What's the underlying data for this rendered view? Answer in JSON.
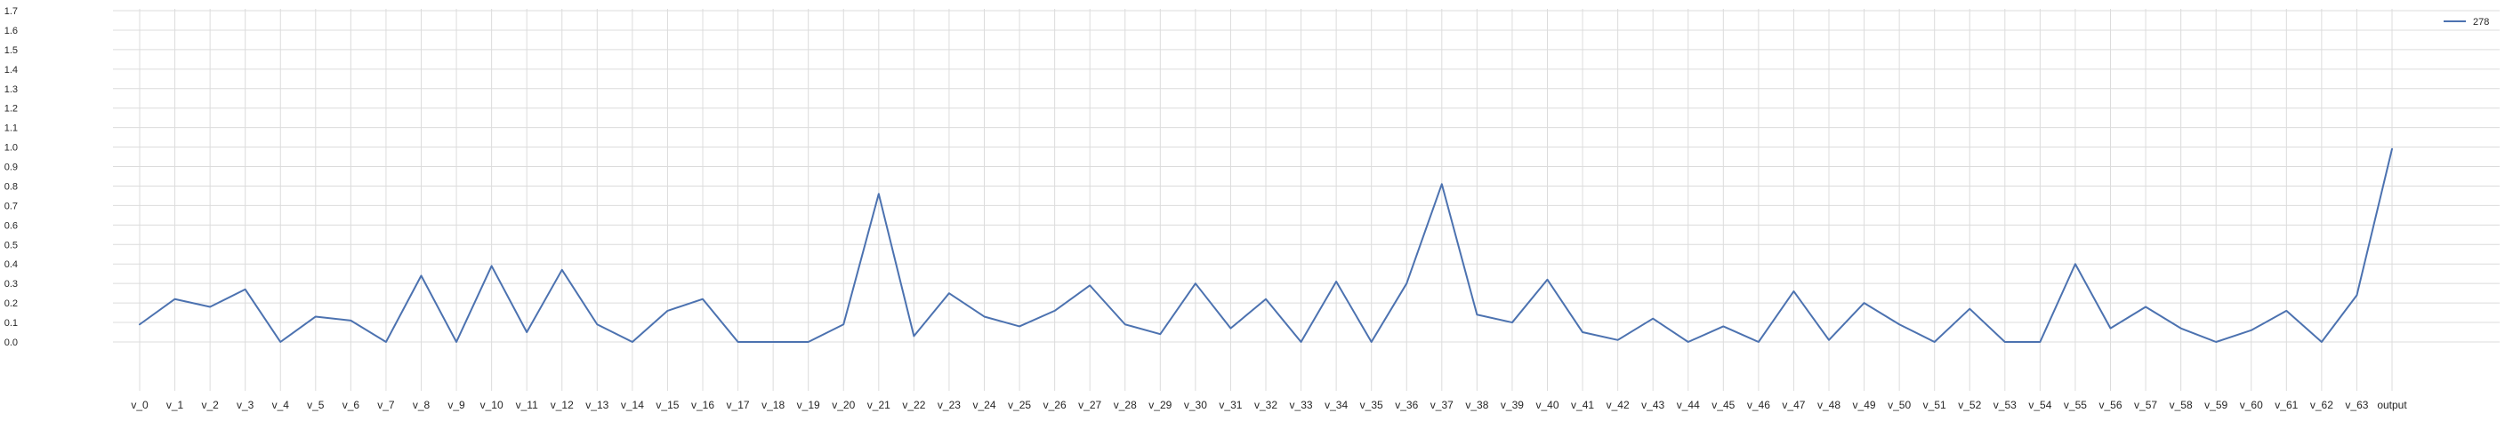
{
  "chart_data": {
    "type": "line",
    "title": "",
    "xlabel": "",
    "ylabel": "",
    "categories": [
      "v_0",
      "v_1",
      "v_2",
      "v_3",
      "v_4",
      "v_5",
      "v_6",
      "v_7",
      "v_8",
      "v_9",
      "v_10",
      "v_11",
      "v_12",
      "v_13",
      "v_14",
      "v_15",
      "v_16",
      "v_17",
      "v_18",
      "v_19",
      "v_20",
      "v_21",
      "v_22",
      "v_23",
      "v_24",
      "v_25",
      "v_26",
      "v_27",
      "v_28",
      "v_29",
      "v_30",
      "v_31",
      "v_32",
      "v_33",
      "v_34",
      "v_35",
      "v_36",
      "v_37",
      "v_38",
      "v_39",
      "v_40",
      "v_41",
      "v_42",
      "v_43",
      "v_44",
      "v_45",
      "v_46",
      "v_47",
      "v_48",
      "v_49",
      "v_50",
      "v_51",
      "v_52",
      "v_53",
      "v_54",
      "v_55",
      "v_56",
      "v_57",
      "v_58",
      "v_59",
      "v_60",
      "v_61",
      "v_62",
      "v_63",
      "output"
    ],
    "series": [
      {
        "name": "278",
        "color": "#4c72b0",
        "values": [
          0.09,
          0.22,
          0.18,
          0.27,
          0.0,
          0.13,
          0.11,
          0.0,
          0.34,
          0.0,
          0.39,
          0.05,
          0.37,
          0.09,
          0.0,
          0.16,
          0.22,
          0.0,
          0.0,
          0.0,
          0.09,
          0.76,
          0.03,
          0.25,
          0.13,
          0.08,
          0.16,
          0.29,
          0.09,
          0.04,
          0.3,
          0.07,
          0.22,
          0.0,
          0.31,
          0.0,
          0.3,
          0.81,
          0.14,
          0.1,
          0.32,
          0.05,
          0.01,
          0.12,
          0.0,
          0.08,
          0.0,
          0.26,
          0.01,
          0.2,
          0.09,
          0.0,
          0.17,
          0.0,
          0.0,
          0.4,
          0.07,
          0.18,
          0.07,
          0.0,
          0.06,
          0.16,
          0.0,
          0.24,
          0.99
        ]
      }
    ],
    "yticks": [
      "0.0",
      "0.1",
      "0.2",
      "0.3",
      "0.4",
      "0.5",
      "0.6",
      "0.7",
      "0.8",
      "0.9",
      "1.0",
      "1.1",
      "1.2",
      "1.3",
      "1.4",
      "1.5",
      "1.6",
      "1.7"
    ],
    "ylim": [
      -0.05,
      1.7
    ],
    "grid": true,
    "legend_position": "top-right",
    "colors": {
      "grid": "#dcdcdc",
      "line": "#4c72b0",
      "text": "#262626"
    }
  }
}
